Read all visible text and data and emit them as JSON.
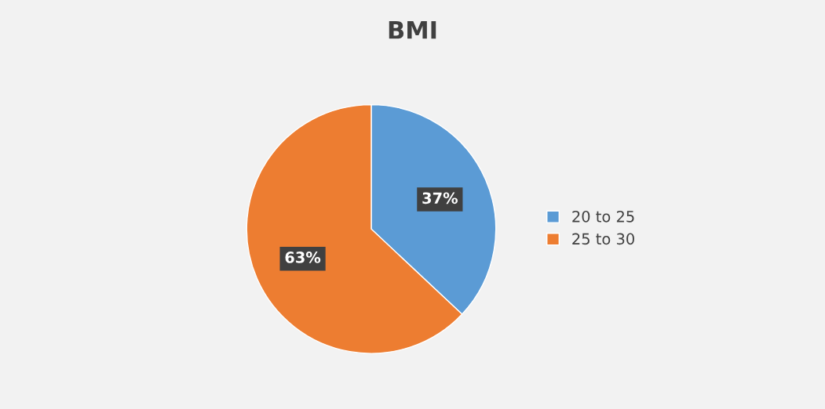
{
  "chart_data": {
    "type": "pie",
    "title": "BMI",
    "categories": [
      "20 to 25",
      "25 to 30"
    ],
    "values": [
      37,
      63
    ],
    "colors": [
      "#5b9bd5",
      "#ed7d31"
    ],
    "value_labels": [
      "37%",
      "63%"
    ],
    "legend": "right"
  }
}
